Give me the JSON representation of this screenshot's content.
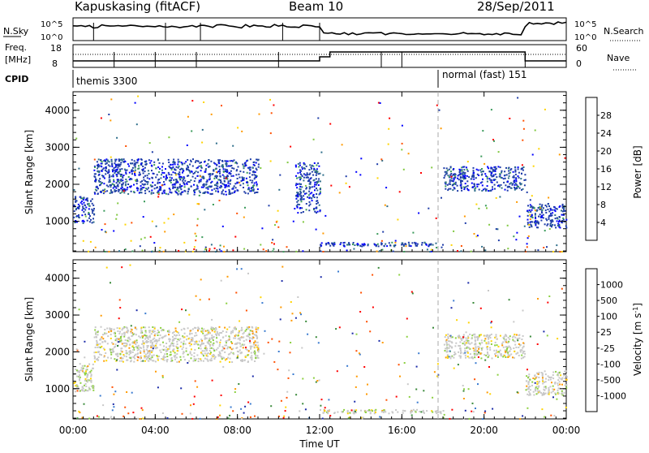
{
  "header": {
    "station": "Kapuskasing (fitACF)",
    "beam": "Beam 10",
    "date": "28/Sep/2011"
  },
  "noise_panel": {
    "left_label": "N.Sky",
    "left_ticks": [
      "10^5",
      "10^0"
    ],
    "right_label": "N.Search",
    "right_ticks": [
      "10^5",
      "10^0"
    ]
  },
  "freq_panel": {
    "left_label_1": "Freq.",
    "left_label_2": "[MHz]",
    "left_ticks": [
      "18",
      "8"
    ],
    "right_label": "Nave",
    "right_ticks": [
      "60",
      "0"
    ]
  },
  "cpid_panel": {
    "label": "CPID",
    "modes": [
      {
        "name": "themis 3300",
        "start_ut": "00:00"
      },
      {
        "name": "normal (fast) 151",
        "start_ut": "18:00"
      }
    ]
  },
  "colors": {
    "power_scale": [
      "#0000ff",
      "#1e3ca8",
      "#2e6e8a",
      "#3a9a5a",
      "#80c840",
      "#ffd400",
      "#ff9a00",
      "#ff5000",
      "#ff0000"
    ],
    "velocity_scale": [
      "#1a2aa8",
      "#3a7bd0",
      "#3a8a3a",
      "#8cd040",
      "#c8c8c8",
      "#ffd400",
      "#ff9a00",
      "#ff5000",
      "#ff0000"
    ]
  },
  "chart_data": [
    {
      "type": "heatmap",
      "title": "Power",
      "xlabel": "",
      "ylabel": "Slant Range [km]",
      "xlim": [
        "00:00",
        "00:00"
      ],
      "ylim": [
        180,
        4500
      ],
      "yticks": [
        "1000",
        "2000",
        "3000",
        "4000"
      ],
      "colorbar": {
        "label": "Power [dB]",
        "ticks": [
          "4",
          "8",
          "12",
          "16",
          "20",
          "24",
          "28"
        ],
        "range": [
          0,
          30
        ]
      },
      "echo_bands": [
        {
          "start_ut": 0.0,
          "end_ut": 1.0,
          "range_km": [
            900,
            1700
          ],
          "power_db": 10
        },
        {
          "start_ut": 1.0,
          "end_ut": 9.0,
          "range_km": [
            1700,
            2700
          ],
          "power_db": 8
        },
        {
          "start_ut": 10.8,
          "end_ut": 12.0,
          "range_km": [
            1200,
            2600
          ],
          "power_db": 6
        },
        {
          "start_ut": 12.0,
          "end_ut": 18.0,
          "range_km": [
            300,
            450
          ],
          "power_db": 10
        },
        {
          "start_ut": 18.0,
          "end_ut": 22.0,
          "range_km": [
            1800,
            2500
          ],
          "power_db": 8
        },
        {
          "start_ut": 22.0,
          "end_ut": 24.0,
          "range_km": [
            800,
            1500
          ],
          "power_db": 10
        }
      ]
    },
    {
      "type": "heatmap",
      "title": "Velocity",
      "xlabel": "Time UT",
      "ylabel": "Slant Range [km]",
      "xlim": [
        "00:00",
        "00:00"
      ],
      "ylim": [
        180,
        4500
      ],
      "yticks": [
        "1000",
        "2000",
        "3000",
        "4000"
      ],
      "xticks": [
        "00:00",
        "04:00",
        "08:00",
        "12:00",
        "16:00",
        "20:00",
        "00:00"
      ],
      "colorbar": {
        "label": "Velocity [m s^-1]",
        "ticks": [
          "1000",
          "500",
          "100",
          "25",
          "-25",
          "-100",
          "-500",
          "-1000"
        ]
      },
      "echo_bands": [
        {
          "start_ut": 0.0,
          "end_ut": 1.0,
          "range_km": [
            900,
            1700
          ],
          "velocity_ms": 0
        },
        {
          "start_ut": 1.0,
          "end_ut": 9.0,
          "range_km": [
            1700,
            2700
          ],
          "velocity_ms": 0
        },
        {
          "start_ut": 12.0,
          "end_ut": 18.0,
          "range_km": [
            300,
            450
          ],
          "velocity_ms": 0
        },
        {
          "start_ut": 18.0,
          "end_ut": 22.0,
          "range_km": [
            1800,
            2500
          ],
          "velocity_ms": 0
        },
        {
          "start_ut": 22.0,
          "end_ut": 24.0,
          "range_km": [
            800,
            1500
          ],
          "velocity_ms": 0
        }
      ]
    }
  ]
}
